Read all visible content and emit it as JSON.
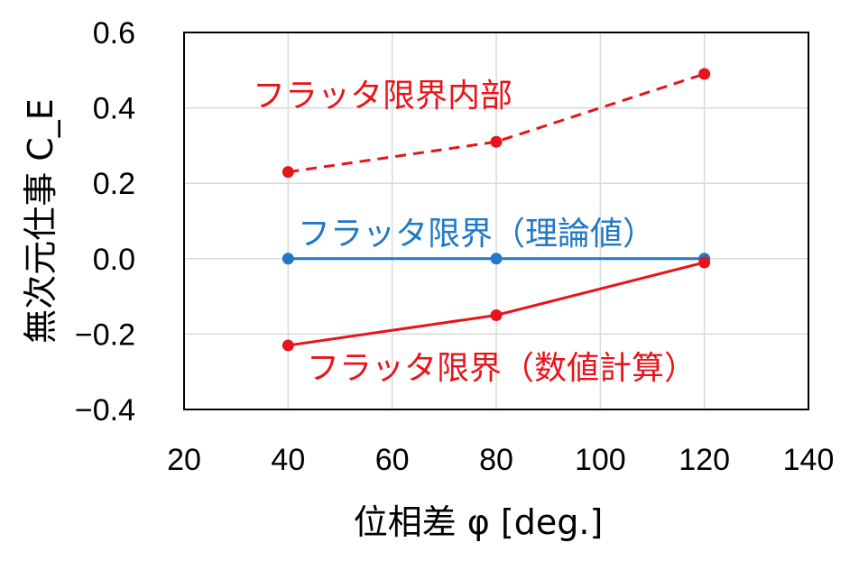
{
  "chart_data": {
    "type": "line",
    "xlabel": "位相差 φ [deg.]",
    "ylabel": "無次元仕事 C_E",
    "xlim": [
      20,
      140
    ],
    "ylim": [
      -0.4,
      0.6
    ],
    "x_ticks": [
      "20",
      "40",
      "60",
      "80",
      "100",
      "120",
      "140"
    ],
    "y_ticks": [
      "0.6",
      "0.4",
      "0.2",
      "0.0",
      "−0.2",
      "−0.4"
    ],
    "grid": true,
    "series": [
      {
        "name": "フラッタ限界内部",
        "x": [
          40,
          80,
          120
        ],
        "y": [
          0.23,
          0.31,
          0.49
        ],
        "color": "#e8141b",
        "style": "dashed"
      },
      {
        "name": "フラッタ限界（理論値）",
        "x": [
          40,
          80,
          120
        ],
        "y": [
          0.0,
          0.0,
          0.0
        ],
        "color": "#1f78c8",
        "style": "solid"
      },
      {
        "name": "フラッタ限界（数値計算）",
        "x": [
          40,
          80,
          120
        ],
        "y": [
          -0.23,
          -0.15,
          -0.01
        ],
        "color": "#e8141b",
        "style": "solid"
      }
    ]
  }
}
